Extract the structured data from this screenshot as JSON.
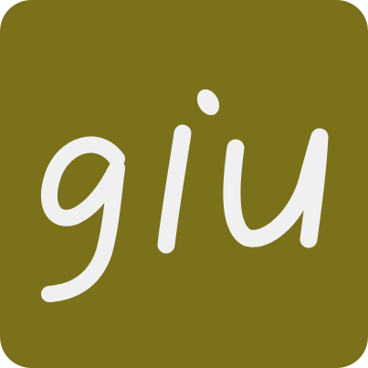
{
  "logo": {
    "wordmark": "giu",
    "background_color": "#7b711b",
    "glyph_color": "#f1f0f0"
  }
}
